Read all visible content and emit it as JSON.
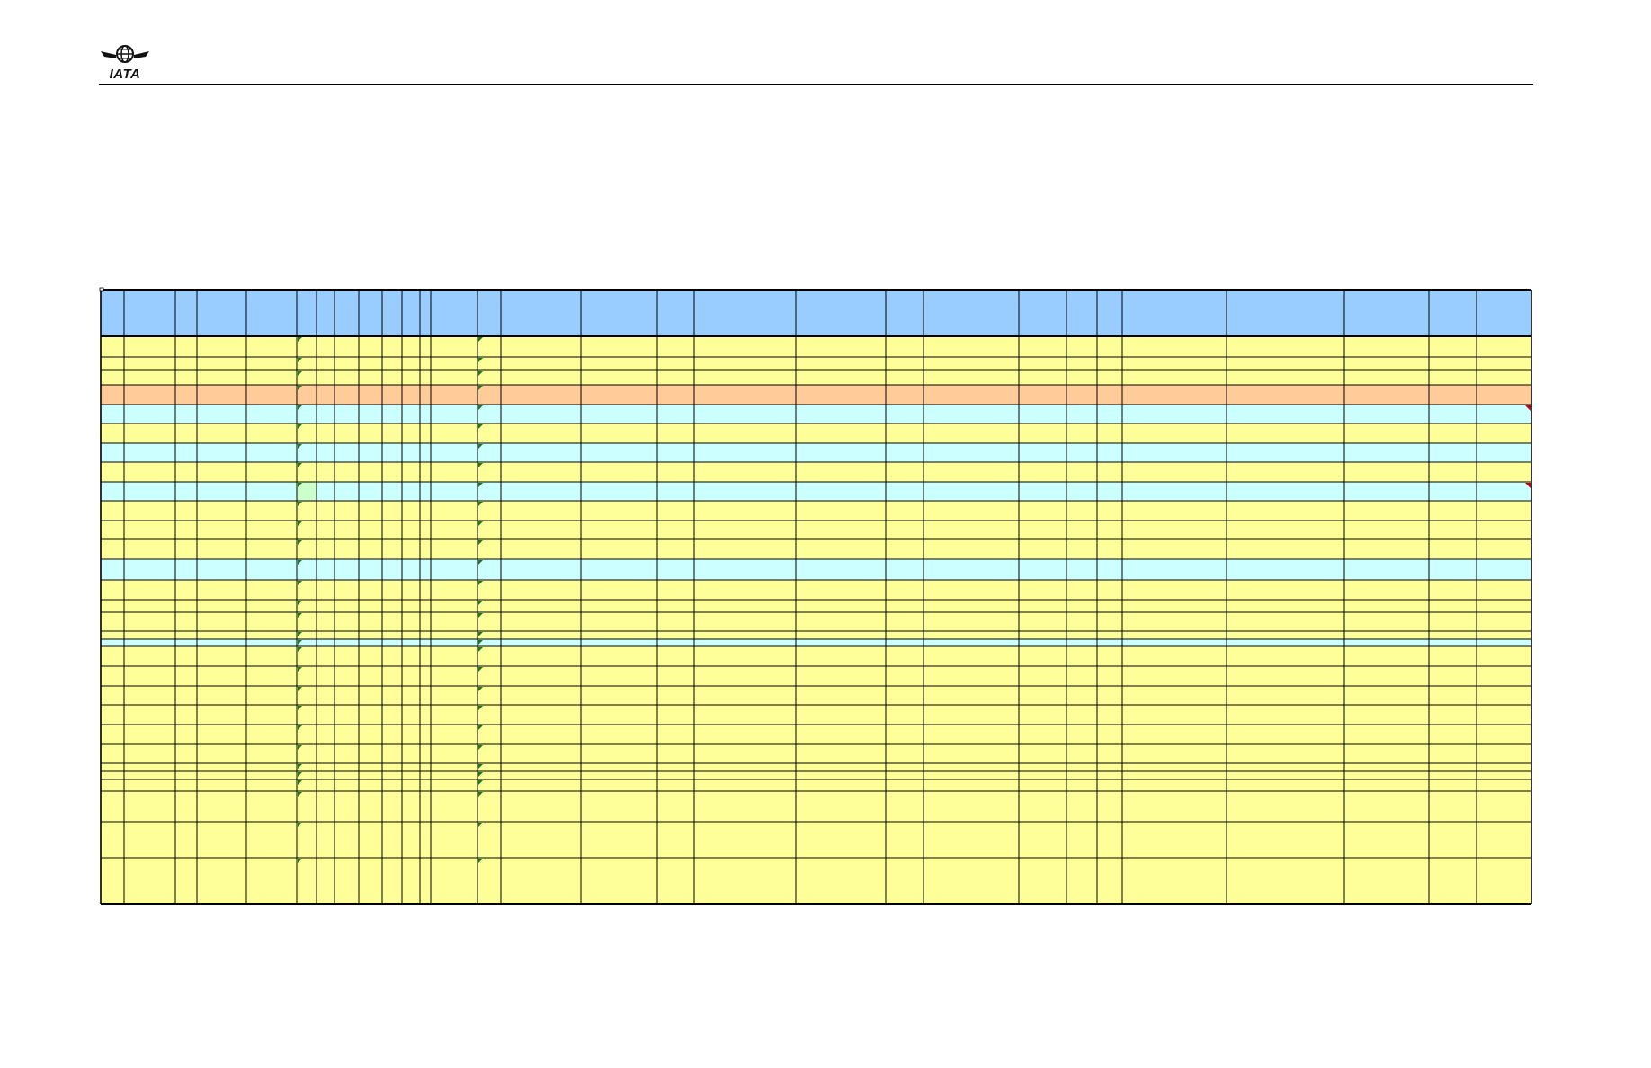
{
  "header": {
    "logo_text": "IATA",
    "logo_icon": "iata-globe-wings-icon"
  },
  "colors": {
    "header_fill": "#99ccff",
    "yellow_row": "#ffff99",
    "cyan_row": "#ccffff",
    "orange_row": "#ffcc99",
    "light_green_cell": "#ccffcc",
    "grid_line": "#000000",
    "note_marker_green": "#1a7a1a",
    "note_marker_red": "#cc0000"
  },
  "table": {
    "column_count": 28,
    "row_count": 30,
    "row_fills": [
      "yellow",
      "yellow",
      "yellow",
      "orange",
      "cyan",
      "yellow",
      "cyan",
      "yellow",
      "cyan",
      "yellow",
      "yellow",
      "yellow",
      "cyan",
      "yellow",
      "yellow",
      "yellow",
      "yellow",
      "cyan",
      "yellow",
      "yellow",
      "yellow",
      "yellow",
      "yellow",
      "yellow",
      "yellow",
      "yellow",
      "yellow",
      "yellow",
      "yellow",
      "yellow"
    ],
    "green_note_columns": [
      5,
      13
    ],
    "red_note_rows": [
      4,
      8
    ],
    "light_green_cell": {
      "row": 8,
      "col": 5
    }
  }
}
